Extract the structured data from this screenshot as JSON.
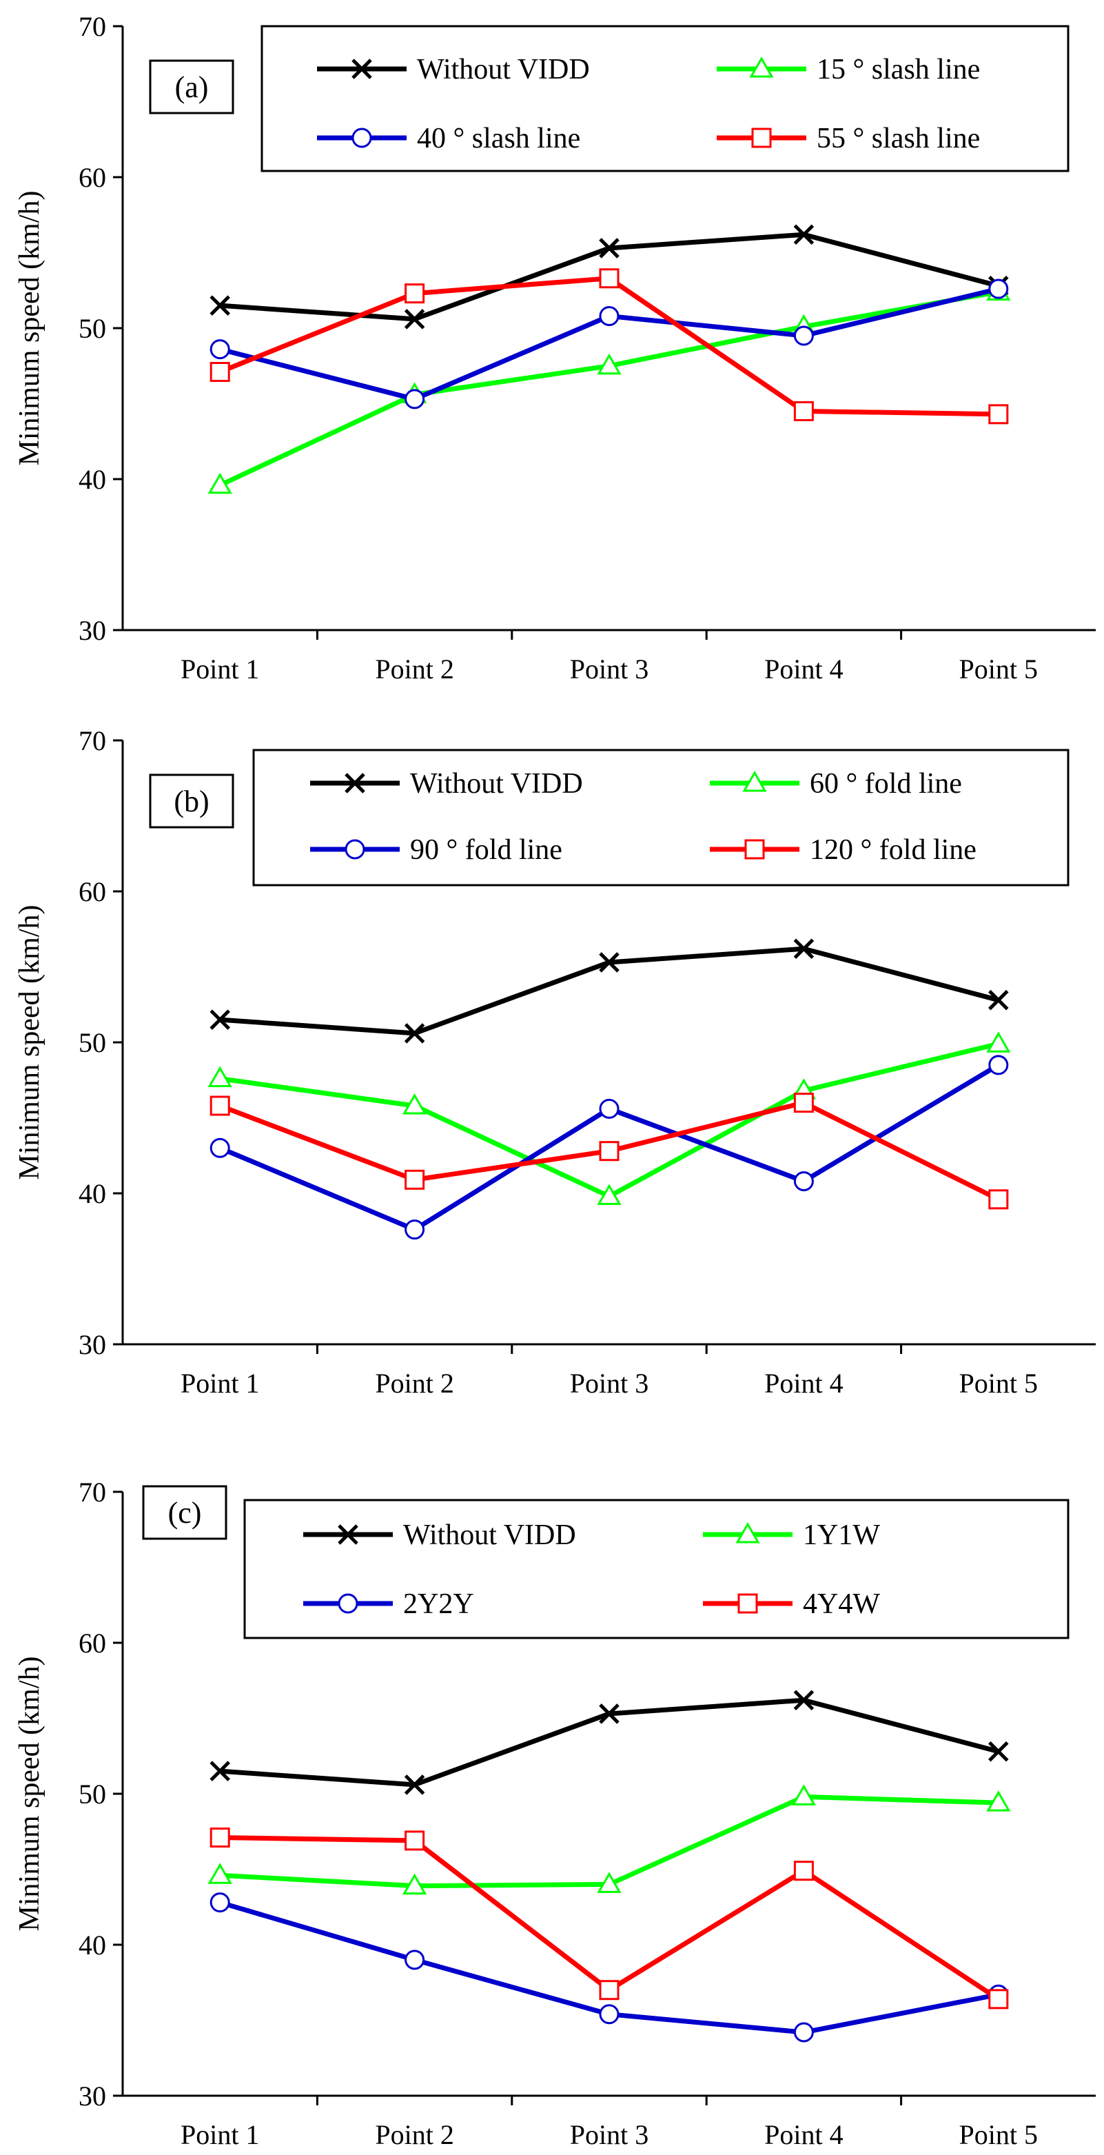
{
  "chart_data": [
    {
      "type": "line",
      "panel_label": "(a)",
      "ylabel": "Minimum speed (km/h)",
      "xlabel": "",
      "ylim": [
        30,
        70
      ],
      "yticks": [
        30,
        40,
        50,
        60,
        70
      ],
      "categories": [
        "Point 1",
        "Point 2",
        "Point 3",
        "Point 4",
        "Point 5"
      ],
      "grid": false,
      "legend_position": "top-right",
      "series": [
        {
          "name": "Without VIDD",
          "color": "#000000",
          "marker": "x",
          "values": [
            51.5,
            50.6,
            55.3,
            56.2,
            52.8
          ]
        },
        {
          "name": "15 ° slash line",
          "color": "#00ff00",
          "marker": "triangle",
          "values": [
            39.6,
            45.6,
            47.5,
            50.1,
            52.4
          ]
        },
        {
          "name": "40 ° slash line",
          "color": "#0000cc",
          "marker": "circle",
          "values": [
            48.6,
            45.3,
            50.8,
            49.5,
            52.6
          ]
        },
        {
          "name": "55 ° slash line",
          "color": "#ff0000",
          "marker": "square",
          "values": [
            47.1,
            52.3,
            53.3,
            44.5,
            44.3
          ]
        }
      ]
    },
    {
      "type": "line",
      "panel_label": "(b)",
      "ylabel": "Minimum speed (km/h)",
      "xlabel": "",
      "ylim": [
        30,
        70
      ],
      "yticks": [
        30,
        40,
        50,
        60,
        70
      ],
      "categories": [
        "Point 1",
        "Point 2",
        "Point 3",
        "Point 4",
        "Point 5"
      ],
      "grid": false,
      "legend_position": "top-right",
      "series": [
        {
          "name": "Without VIDD",
          "color": "#000000",
          "marker": "x",
          "values": [
            51.5,
            50.6,
            55.3,
            56.2,
            52.8
          ]
        },
        {
          "name": "60 ° fold line",
          "color": "#00ff00",
          "marker": "triangle",
          "values": [
            47.6,
            45.8,
            39.8,
            46.8,
            49.9
          ]
        },
        {
          "name": "90 ° fold line",
          "color": "#0000cc",
          "marker": "circle",
          "values": [
            43.0,
            37.6,
            45.6,
            40.8,
            48.5
          ]
        },
        {
          "name": "120 ° fold line",
          "color": "#ff0000",
          "marker": "square",
          "values": [
            45.8,
            40.9,
            42.8,
            46.0,
            39.6
          ]
        }
      ]
    },
    {
      "type": "line",
      "panel_label": "(c)",
      "ylabel": "Minimum speed (km/h)",
      "xlabel": "",
      "ylim": [
        30,
        70
      ],
      "yticks": [
        30,
        40,
        50,
        60,
        70
      ],
      "categories": [
        "Point 1",
        "Point 2",
        "Point 3",
        "Point 4",
        "Point 5"
      ],
      "grid": false,
      "legend_position": "top-right",
      "series": [
        {
          "name": "Without VIDD",
          "color": "#000000",
          "marker": "x",
          "values": [
            51.5,
            50.6,
            55.3,
            56.2,
            52.8
          ]
        },
        {
          "name": "1Y1W",
          "color": "#00ff00",
          "marker": "triangle",
          "values": [
            44.6,
            43.9,
            44.0,
            49.8,
            49.4
          ]
        },
        {
          "name": "2Y2Y",
          "color": "#0000cc",
          "marker": "circle",
          "values": [
            42.8,
            39.0,
            35.4,
            34.2,
            36.7
          ]
        },
        {
          "name": "4Y4W",
          "color": "#ff0000",
          "marker": "square",
          "values": [
            47.1,
            46.9,
            37.0,
            44.9,
            36.4
          ]
        }
      ]
    }
  ]
}
